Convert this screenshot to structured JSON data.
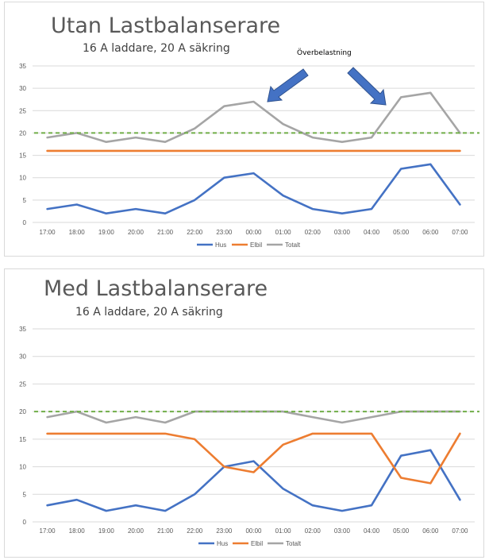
{
  "colors": {
    "hus": "#4472c4",
    "elbil": "#ed7d31",
    "totalt": "#a5a5a5",
    "limit": "#70ad47",
    "arrow_fill": "#4472c4",
    "arrow_stroke": "#2f528f",
    "grid": "#d9d9d9"
  },
  "chart_data": [
    {
      "type": "line",
      "title": "Utan Lastbalanserare",
      "subtitle": "16 A laddare, 20 A säkring",
      "categories": [
        "17:00",
        "18:00",
        "19:00",
        "20:00",
        "21:00",
        "22:00",
        "23:00",
        "00:00",
        "01:00",
        "02:00",
        "03:00",
        "04:00",
        "05:00",
        "06:00",
        "07:00"
      ],
      "ylim": [
        0,
        35
      ],
      "yticks": [
        "0",
        "5",
        "10",
        "15",
        "20",
        "25",
        "30",
        "35"
      ],
      "grid": true,
      "legend": "bottom",
      "series": [
        {
          "name": "Hus",
          "values": [
            3,
            4,
            2,
            3,
            2,
            5,
            10,
            11,
            6,
            3,
            2,
            3,
            12,
            13,
            4
          ]
        },
        {
          "name": "Elbil",
          "values": [
            16,
            16,
            16,
            16,
            16,
            16,
            16,
            16,
            16,
            16,
            16,
            16,
            16,
            16,
            16
          ]
        },
        {
          "name": "Totalt",
          "values": [
            19,
            20,
            18,
            19,
            18,
            21,
            26,
            27,
            22,
            19,
            18,
            19,
            28,
            29,
            20
          ]
        }
      ],
      "reference_line": {
        "value": 20,
        "style": "dashed"
      },
      "annotation": {
        "text": "Överbelastning",
        "arrow_targets": [
          "00:00",
          "05:00"
        ]
      }
    },
    {
      "type": "line",
      "title": "Med Lastbalanserare",
      "subtitle": "16 A laddare, 20 A säkring",
      "categories": [
        "17:00",
        "18:00",
        "19:00",
        "20:00",
        "21:00",
        "22:00",
        "23:00",
        "00:00",
        "01:00",
        "02:00",
        "03:00",
        "04:00",
        "05:00",
        "06:00",
        "07:00"
      ],
      "ylim": [
        0,
        35
      ],
      "yticks": [
        "0",
        "5",
        "10",
        "15",
        "20",
        "25",
        "30",
        "35"
      ],
      "grid": true,
      "legend": "bottom",
      "series": [
        {
          "name": "Hus",
          "values": [
            3,
            4,
            2,
            3,
            2,
            5,
            10,
            11,
            6,
            3,
            2,
            3,
            12,
            13,
            4
          ]
        },
        {
          "name": "Elbil",
          "values": [
            16,
            16,
            16,
            16,
            16,
            15,
            10,
            9,
            14,
            16,
            16,
            16,
            8,
            7,
            16
          ]
        },
        {
          "name": "Totalt",
          "values": [
            19,
            20,
            18,
            19,
            18,
            20,
            20,
            20,
            20,
            19,
            18,
            19,
            20,
            20,
            20
          ]
        }
      ],
      "reference_line": {
        "value": 20,
        "style": "dashed"
      }
    }
  ]
}
